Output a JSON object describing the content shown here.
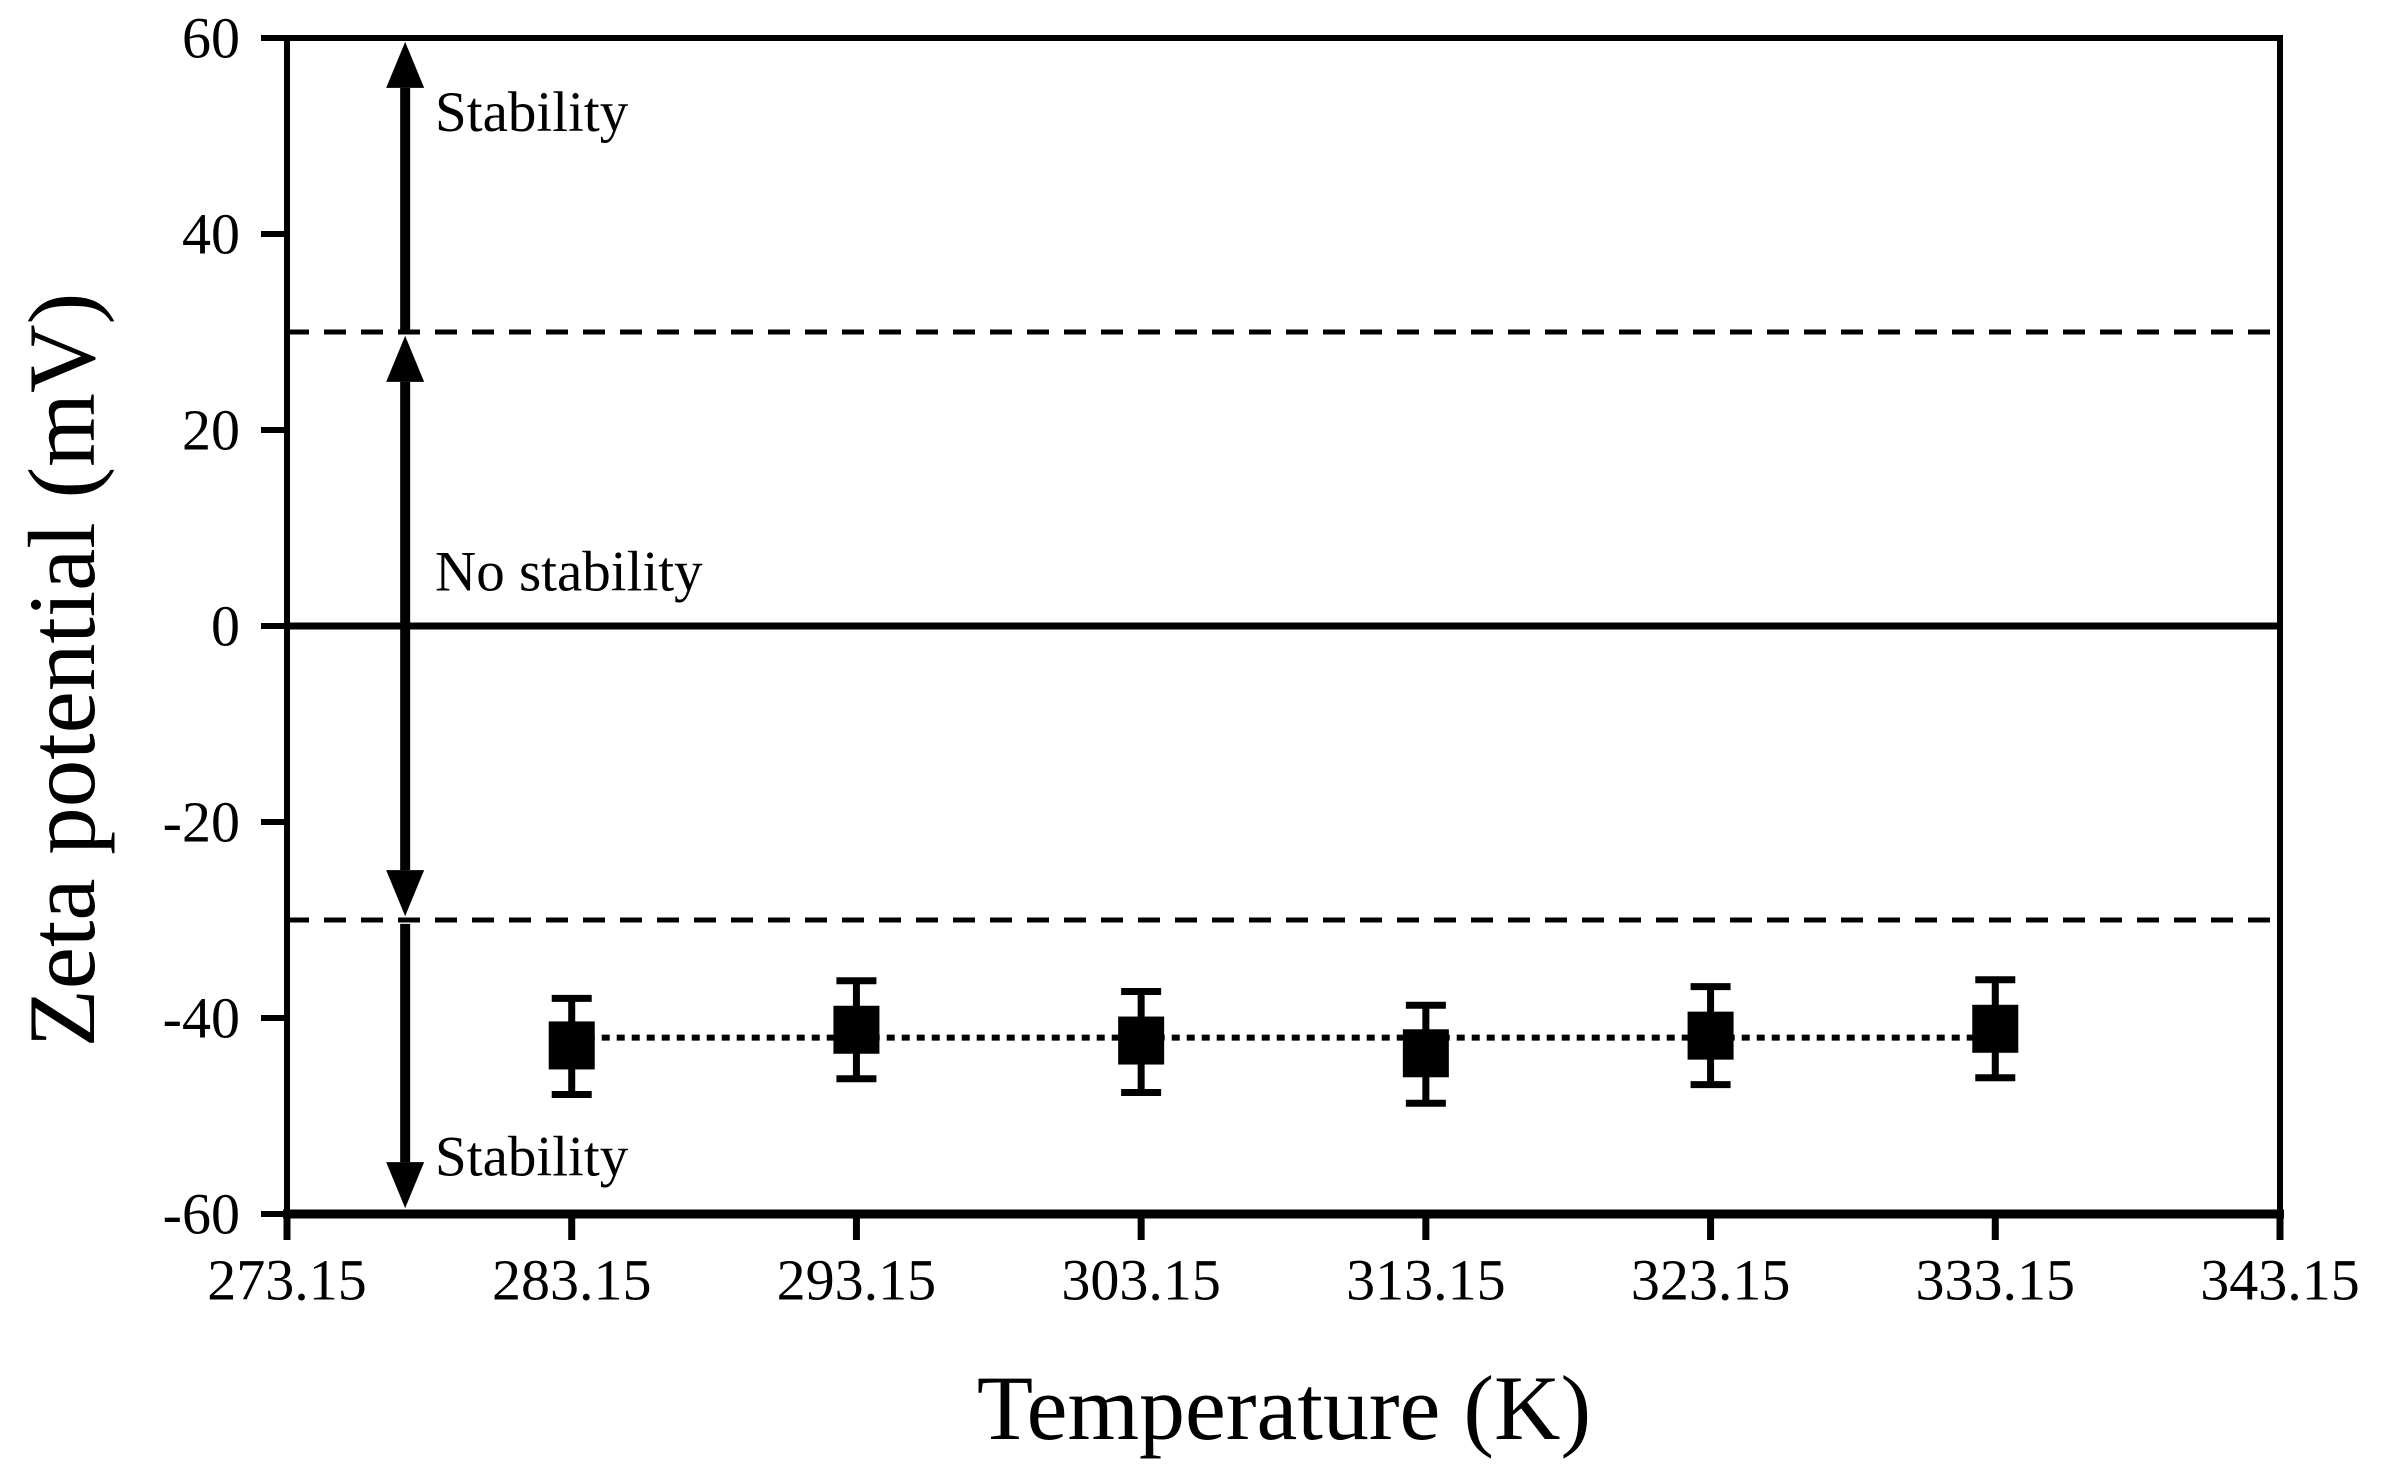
{
  "figure": {
    "description": "Zeta potential versus temperature scatter plot with stability regions"
  },
  "chart_data": {
    "type": "scatter",
    "title": "",
    "xlabel": "Temperature (K)",
    "ylabel": "Zeta potential (mV)",
    "xlim": [
      273.15,
      343.15
    ],
    "ylim": [
      -60,
      60
    ],
    "x_ticks": [
      273.15,
      283.15,
      293.15,
      303.15,
      313.15,
      323.15,
      333.15,
      343.15
    ],
    "x_tick_labels": [
      "273.15",
      "283.15",
      "293.15",
      "303.15",
      "313.15",
      "323.15",
      "333.15",
      "343.15"
    ],
    "y_ticks": [
      -60,
      -40,
      -20,
      0,
      20,
      40,
      60
    ],
    "y_tick_labels": [
      "-60",
      "-40",
      "-20",
      "0",
      "20",
      "40",
      "60"
    ],
    "grid": false,
    "legend": null,
    "series": [
      {
        "name": "zeta-potential-vs-temperature",
        "marker": "filled-square",
        "connector": {
          "style": "dotted",
          "y": -42.0
        },
        "points": [
          {
            "x": 283.15,
            "y": -42.8,
            "err_plus": 4.8,
            "err_minus": 5.0
          },
          {
            "x": 293.15,
            "y": -41.2,
            "err_plus": 5.0,
            "err_minus": 5.0
          },
          {
            "x": 303.15,
            "y": -42.3,
            "err_plus": 5.0,
            "err_minus": 5.3
          },
          {
            "x": 313.15,
            "y": -43.6,
            "err_plus": 4.9,
            "err_minus": 5.1
          },
          {
            "x": 323.15,
            "y": -41.8,
            "err_plus": 5.0,
            "err_minus": 5.0
          },
          {
            "x": 333.15,
            "y": -41.1,
            "err_plus": 5.0,
            "err_minus": 5.0
          }
        ]
      }
    ],
    "reference_lines": [
      {
        "y": 30,
        "style": "dashed"
      },
      {
        "y": 0,
        "style": "solid"
      },
      {
        "y": -30,
        "style": "dashed"
      }
    ],
    "arrows": [
      {
        "name": "stability-upper-arrow",
        "x": 277.3,
        "y1": 59.6,
        "y2": 30,
        "heads": "start"
      },
      {
        "name": "no-stability-arrow",
        "x": 277.3,
        "y1": 29.6,
        "y2": -29.6,
        "heads": "both"
      },
      {
        "name": "stability-lower-arrow",
        "x": 277.3,
        "y1": -30.4,
        "y2": -59.4,
        "heads": "end"
      }
    ],
    "annotations": [
      {
        "name": "stability-label-top",
        "text": "Stability",
        "x": 278.35,
        "y": 52.4
      },
      {
        "name": "no-stability-label",
        "text": "No stability",
        "x": 278.35,
        "y": 5.5
      },
      {
        "name": "stability-label-bottom",
        "text": "Stability",
        "x": 278.35,
        "y": -54.2
      }
    ],
    "colors": {
      "foreground": "#000000",
      "background": "#ffffff"
    }
  }
}
